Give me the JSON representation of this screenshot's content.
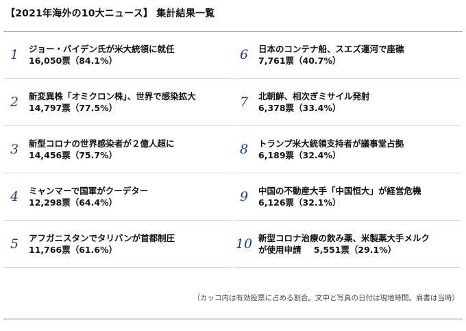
{
  "title": "【2021年海外の10大ニュース】 集計結果一覧",
  "items": [
    {
      "rank": "1",
      "headline": "ジョー・バイデン氏が米大統領に就任",
      "headline2": "",
      "votes": "16,050票（84.1%）"
    },
    {
      "rank": "2",
      "headline": "新変異株「オミクロン株」、世界で感染拡大",
      "headline2": "",
      "votes": "14,797票（77.5%）"
    },
    {
      "rank": "3",
      "headline": "新型コロナの世界感染者が２億人超に",
      "headline2": "",
      "votes": "14,456票（75.7%）"
    },
    {
      "rank": "4",
      "headline": "ミャンマーで国軍がクーデター",
      "headline2": "",
      "votes": "12,298票（64.4%）"
    },
    {
      "rank": "5",
      "headline": "アフガニスタンでタリバンが首都制圧",
      "headline2": "",
      "votes": "11,766票（61.6%）"
    },
    {
      "rank": "6",
      "headline": "日本のコンテナ船、スエズ運河で座礁",
      "headline2": "",
      "votes": "7,761票（40.7%）"
    },
    {
      "rank": "7",
      "headline": "北朝鮮、相次ぎミサイル発射",
      "headline2": "",
      "votes": "6,378票（33.4%）"
    },
    {
      "rank": "8",
      "headline": "トランプ米大統領支持者が議事堂占拠",
      "headline2": "",
      "votes": "6,189票（32.4%）"
    },
    {
      "rank": "9",
      "headline": "中国の不動産大手「中国恒大」が経営危機",
      "headline2": "",
      "votes": "6,126票（32.1%）"
    },
    {
      "rank": "10",
      "headline": "新型コロナ治療の飲み薬、米製薬大手メルク",
      "headline2": "が使用申請",
      "votes": "5,551票（29.1%）"
    }
  ],
  "note": "（カッコ内は有効投票に占める割合。文中と写真の日付は現地時間。肩書は当時）",
  "colors": {
    "rank": "#1c3f94",
    "rule": "#7a7a7a",
    "divider": "#d9d9d9"
  }
}
